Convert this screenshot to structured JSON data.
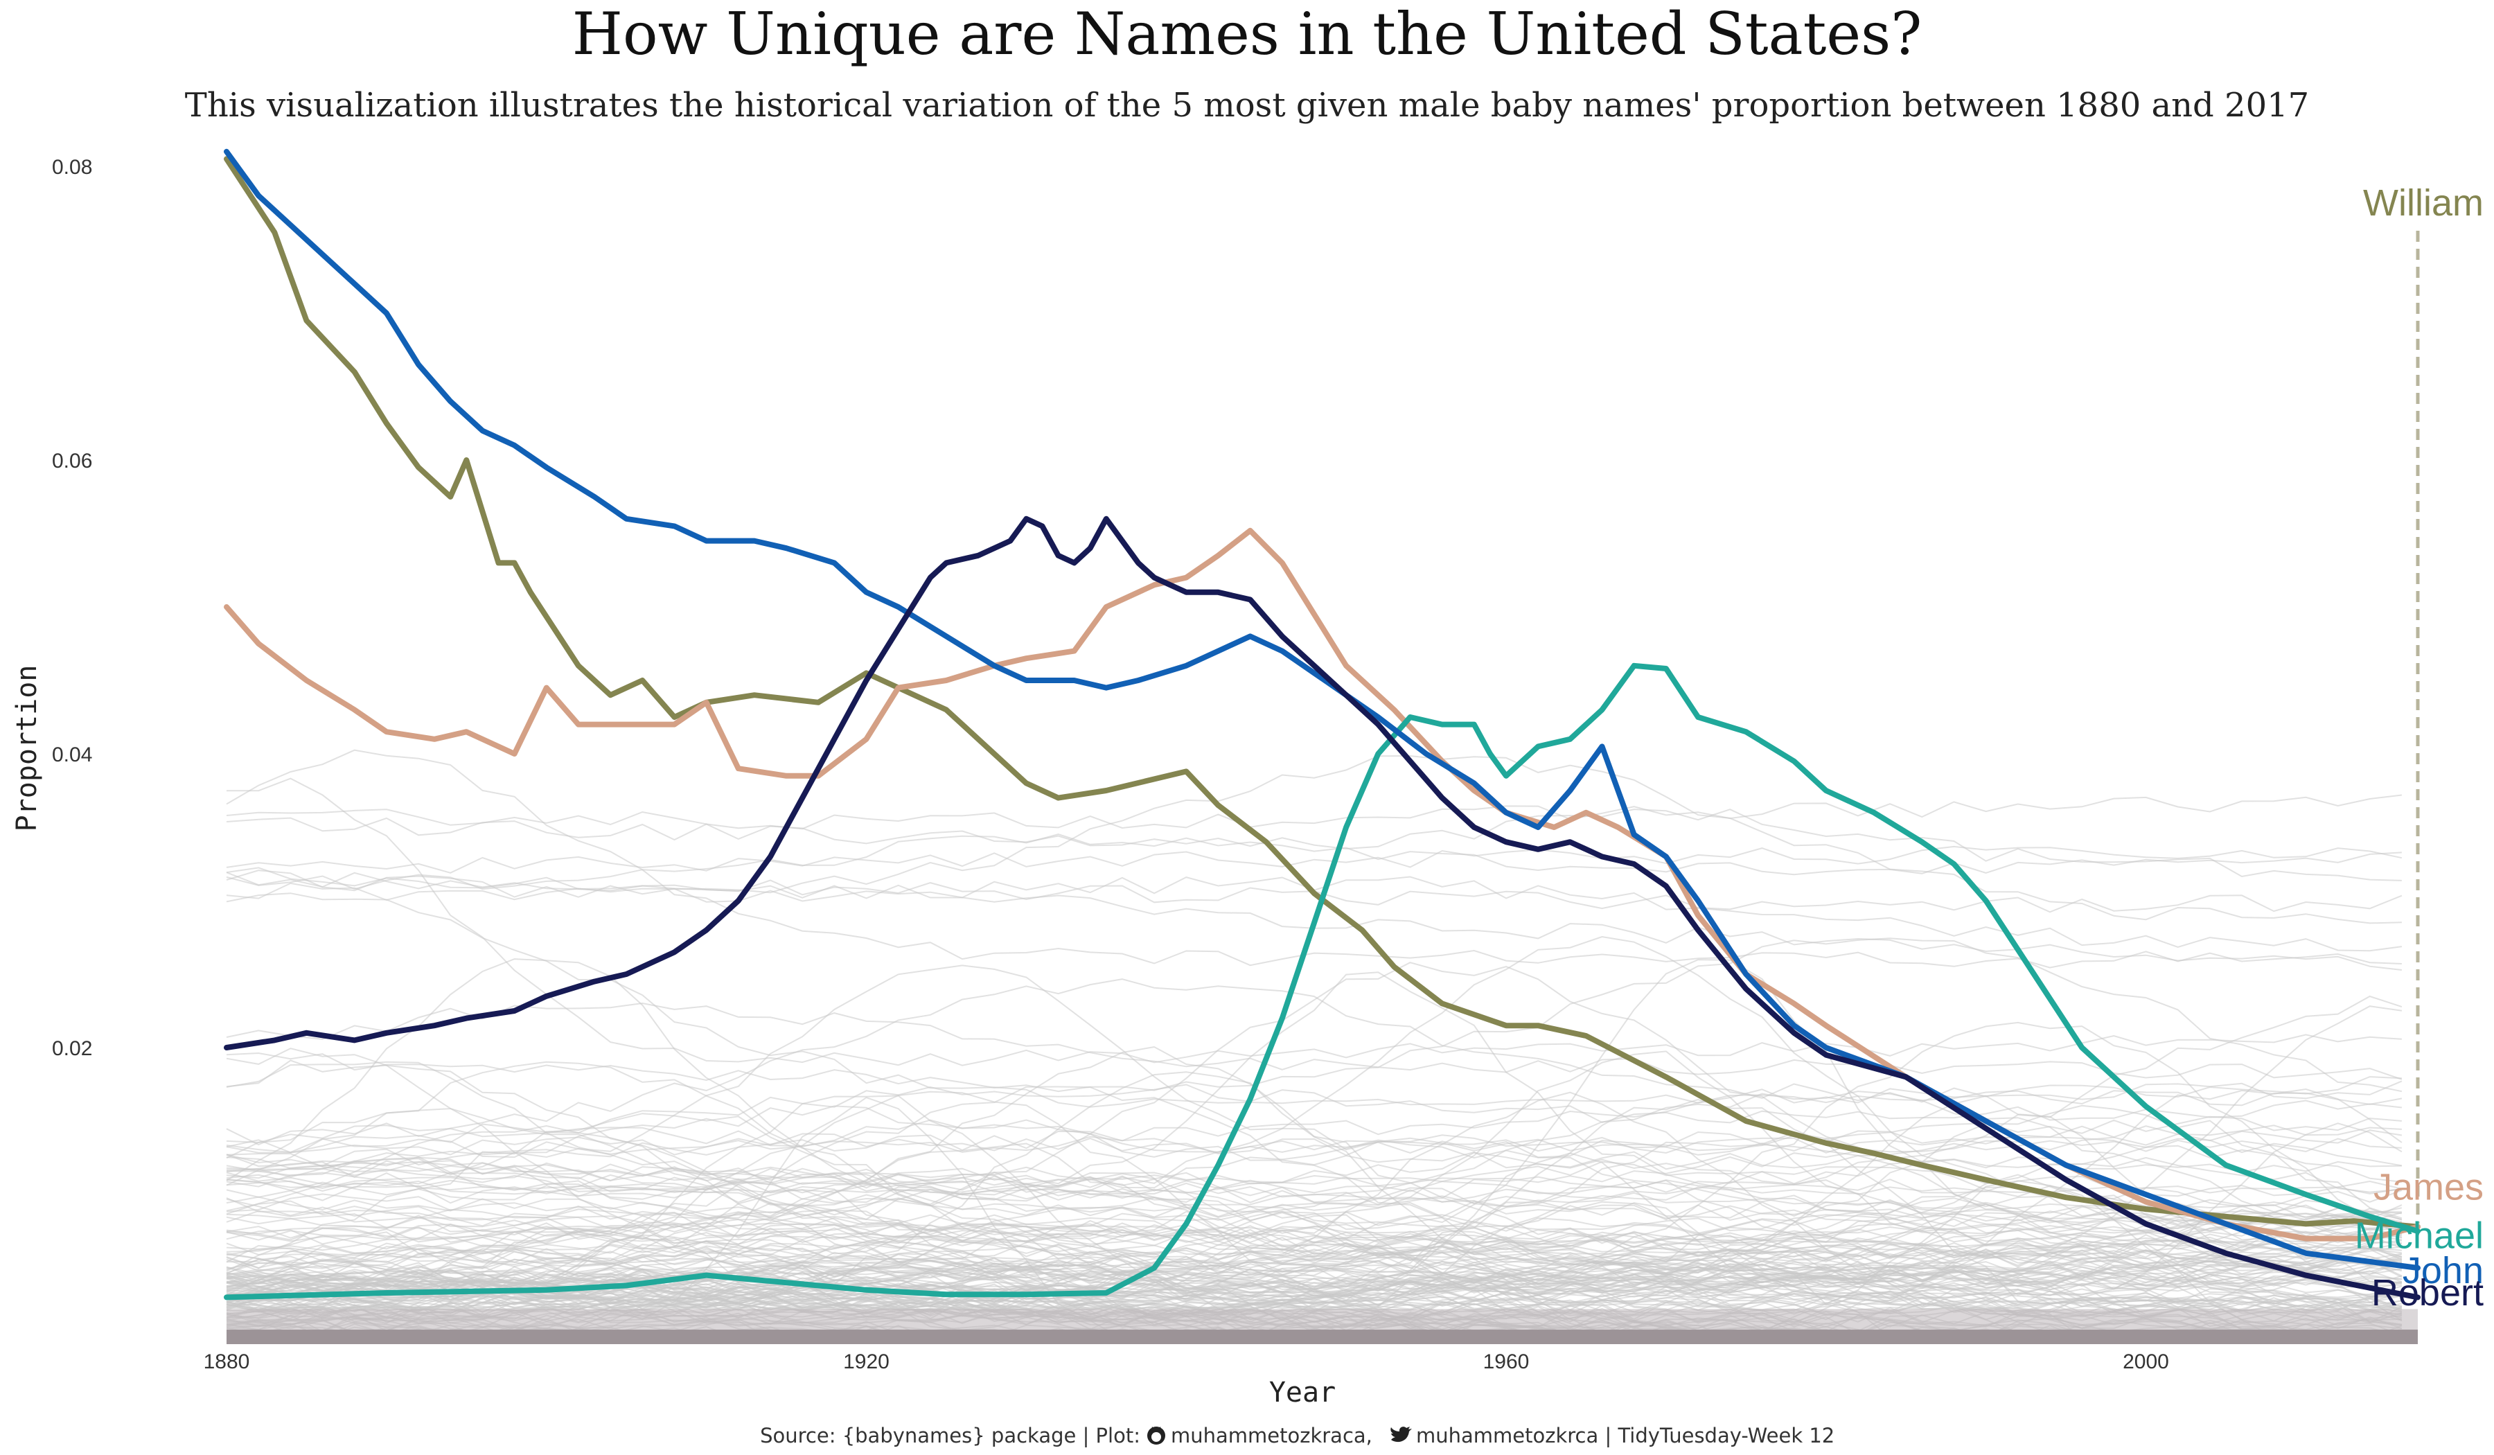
{
  "chart_data": {
    "type": "line",
    "title": "How Unique are Names in the United States?",
    "subtitle": "This visualization illustrates the historical variation of the 5 most given male baby names' proportion between 1880 and 2017",
    "xlabel": "Year",
    "ylabel": "Proportion",
    "xlim": [
      1880,
      2017
    ],
    "ylim": [
      0,
      0.08
    ],
    "x_ticks": [
      1880,
      1920,
      1960,
      2000
    ],
    "y_ticks": [
      0.02,
      0.04,
      0.06,
      0.08
    ],
    "grid": false,
    "legend": "direct labels at right end of each line",
    "caption": {
      "prefix": "Source: {babynames} package | Plot:",
      "github_handle": "muhammetozkraca,",
      "twitter_handle": "muhammetozkrca | TidyTuesday-Week 12"
    },
    "highlight_year": 2017,
    "series": [
      {
        "name": "William",
        "color": "#848550",
        "x": [
          1880,
          1883,
          1885,
          1888,
          1890,
          1892,
          1894,
          1895,
          1897,
          1898,
          1899,
          1902,
          1904,
          1906,
          1908,
          1910,
          1913,
          1917,
          1920,
          1925,
          1930,
          1932,
          1935,
          1940,
          1942,
          1945,
          1948,
          1951,
          1953,
          1956,
          1960,
          1962,
          1965,
          1970,
          1975,
          1980,
          1983,
          1986,
          1990,
          1995,
          2000,
          2005,
          2010,
          2013,
          2017
        ],
        "y": [
          0.0805,
          0.0755,
          0.0695,
          0.066,
          0.0625,
          0.0595,
          0.0575,
          0.06,
          0.053,
          0.053,
          0.051,
          0.046,
          0.044,
          0.045,
          0.0425,
          0.0435,
          0.044,
          0.0435,
          0.0455,
          0.043,
          0.038,
          0.037,
          0.0375,
          0.0388,
          0.0365,
          0.034,
          0.0305,
          0.028,
          0.0255,
          0.023,
          0.0215,
          0.0215,
          0.0208,
          0.018,
          0.015,
          0.0135,
          0.0128,
          0.012,
          0.011,
          0.0098,
          0.009,
          0.0085,
          0.008,
          0.0082,
          0.0078
        ]
      },
      {
        "name": "James",
        "color": "#d4a085",
        "x": [
          1880,
          1882,
          1885,
          1888,
          1890,
          1893,
          1895,
          1898,
          1900,
          1902,
          1905,
          1908,
          1910,
          1912,
          1915,
          1917,
          1920,
          1922,
          1925,
          1928,
          1930,
          1933,
          1935,
          1938,
          1940,
          1942,
          1944,
          1946,
          1948,
          1950,
          1953,
          1956,
          1958,
          1960,
          1963,
          1965,
          1967,
          1970,
          1972,
          1975,
          1978,
          1980,
          1985,
          1990,
          1995,
          2000,
          2005,
          2010,
          2014,
          2017
        ],
        "y": [
          0.05,
          0.0475,
          0.045,
          0.043,
          0.0415,
          0.041,
          0.0415,
          0.04,
          0.0445,
          0.042,
          0.042,
          0.042,
          0.0435,
          0.039,
          0.0385,
          0.0385,
          0.041,
          0.0445,
          0.045,
          0.046,
          0.0465,
          0.047,
          0.05,
          0.0515,
          0.052,
          0.0535,
          0.0552,
          0.053,
          0.0495,
          0.046,
          0.043,
          0.0395,
          0.0375,
          0.036,
          0.035,
          0.036,
          0.035,
          0.033,
          0.029,
          0.025,
          0.023,
          0.0215,
          0.018,
          0.015,
          0.012,
          0.0095,
          0.008,
          0.007,
          0.007,
          0.0078
        ]
      },
      {
        "name": "Michael",
        "color": "#20a89a",
        "x": [
          1880,
          1890,
          1900,
          1905,
          1910,
          1915,
          1920,
          1925,
          1930,
          1935,
          1938,
          1940,
          1942,
          1944,
          1946,
          1948,
          1950,
          1952,
          1954,
          1956,
          1958,
          1959,
          1960,
          1962,
          1964,
          1966,
          1968,
          1970,
          1972,
          1975,
          1978,
          1980,
          1983,
          1986,
          1988,
          1990,
          1993,
          1996,
          2000,
          2005,
          2010,
          2014,
          2017
        ],
        "y": [
          0.003,
          0.0033,
          0.0035,
          0.0038,
          0.0045,
          0.004,
          0.0035,
          0.0032,
          0.0032,
          0.0033,
          0.005,
          0.008,
          0.012,
          0.0165,
          0.022,
          0.0285,
          0.035,
          0.04,
          0.0425,
          0.042,
          0.042,
          0.04,
          0.0385,
          0.0405,
          0.041,
          0.043,
          0.046,
          0.0458,
          0.0425,
          0.0415,
          0.0395,
          0.0375,
          0.036,
          0.034,
          0.0325,
          0.03,
          0.025,
          0.02,
          0.016,
          0.012,
          0.01,
          0.0085,
          0.0075
        ]
      },
      {
        "name": "John",
        "color": "#1160b5",
        "x": [
          1880,
          1882,
          1884,
          1886,
          1888,
          1890,
          1892,
          1894,
          1896,
          1898,
          1900,
          1903,
          1905,
          1908,
          1910,
          1913,
          1915,
          1918,
          1920,
          1922,
          1925,
          1928,
          1930,
          1933,
          1935,
          1937,
          1940,
          1942,
          1944,
          1946,
          1948,
          1950,
          1952,
          1955,
          1958,
          1960,
          1962,
          1964,
          1966,
          1968,
          1970,
          1972,
          1975,
          1978,
          1980,
          1985,
          1990,
          1995,
          2000,
          2005,
          2010,
          2017
        ],
        "y": [
          0.081,
          0.078,
          0.076,
          0.074,
          0.072,
          0.07,
          0.0665,
          0.064,
          0.062,
          0.061,
          0.0595,
          0.0575,
          0.056,
          0.0555,
          0.0545,
          0.0545,
          0.054,
          0.053,
          0.051,
          0.05,
          0.048,
          0.046,
          0.045,
          0.045,
          0.0445,
          0.045,
          0.046,
          0.047,
          0.048,
          0.047,
          0.0455,
          0.044,
          0.0425,
          0.04,
          0.038,
          0.036,
          0.035,
          0.0375,
          0.0405,
          0.0345,
          0.033,
          0.03,
          0.025,
          0.0215,
          0.02,
          0.018,
          0.015,
          0.012,
          0.01,
          0.008,
          0.006,
          0.005
        ]
      },
      {
        "name": "Robert",
        "color": "#161a54",
        "x": [
          1880,
          1883,
          1885,
          1888,
          1890,
          1893,
          1895,
          1898,
          1900,
          1903,
          1905,
          1908,
          1910,
          1912,
          1914,
          1916,
          1918,
          1920,
          1922,
          1924,
          1925,
          1927,
          1929,
          1930,
          1931,
          1932,
          1933,
          1934,
          1935,
          1936,
          1937,
          1938,
          1939,
          1940,
          1942,
          1944,
          1946,
          1948,
          1950,
          1952,
          1954,
          1956,
          1958,
          1960,
          1962,
          1964,
          1966,
          1968,
          1970,
          1972,
          1975,
          1978,
          1980,
          1985,
          1990,
          1995,
          2000,
          2005,
          2010,
          2017
        ],
        "y": [
          0.02,
          0.0205,
          0.021,
          0.0205,
          0.021,
          0.0215,
          0.022,
          0.0225,
          0.0235,
          0.0245,
          0.025,
          0.0265,
          0.028,
          0.03,
          0.033,
          0.037,
          0.041,
          0.045,
          0.0485,
          0.052,
          0.053,
          0.0535,
          0.0545,
          0.056,
          0.0555,
          0.0535,
          0.053,
          0.054,
          0.056,
          0.0545,
          0.053,
          0.052,
          0.0515,
          0.051,
          0.051,
          0.0505,
          0.048,
          0.046,
          0.044,
          0.042,
          0.0395,
          0.037,
          0.035,
          0.034,
          0.0335,
          0.034,
          0.033,
          0.0325,
          0.031,
          0.028,
          0.024,
          0.021,
          0.0195,
          0.018,
          0.0145,
          0.011,
          0.008,
          0.006,
          0.0045,
          0.003
        ]
      }
    ],
    "end_labels": [
      {
        "name": "James",
        "y": 0.0105
      },
      {
        "name": "Michael",
        "y": 0.0072
      },
      {
        "name": "John",
        "y": 0.0048
      },
      {
        "name": "Robert",
        "y": 0.0033
      }
    ],
    "william_label_y": 0.0775
  }
}
